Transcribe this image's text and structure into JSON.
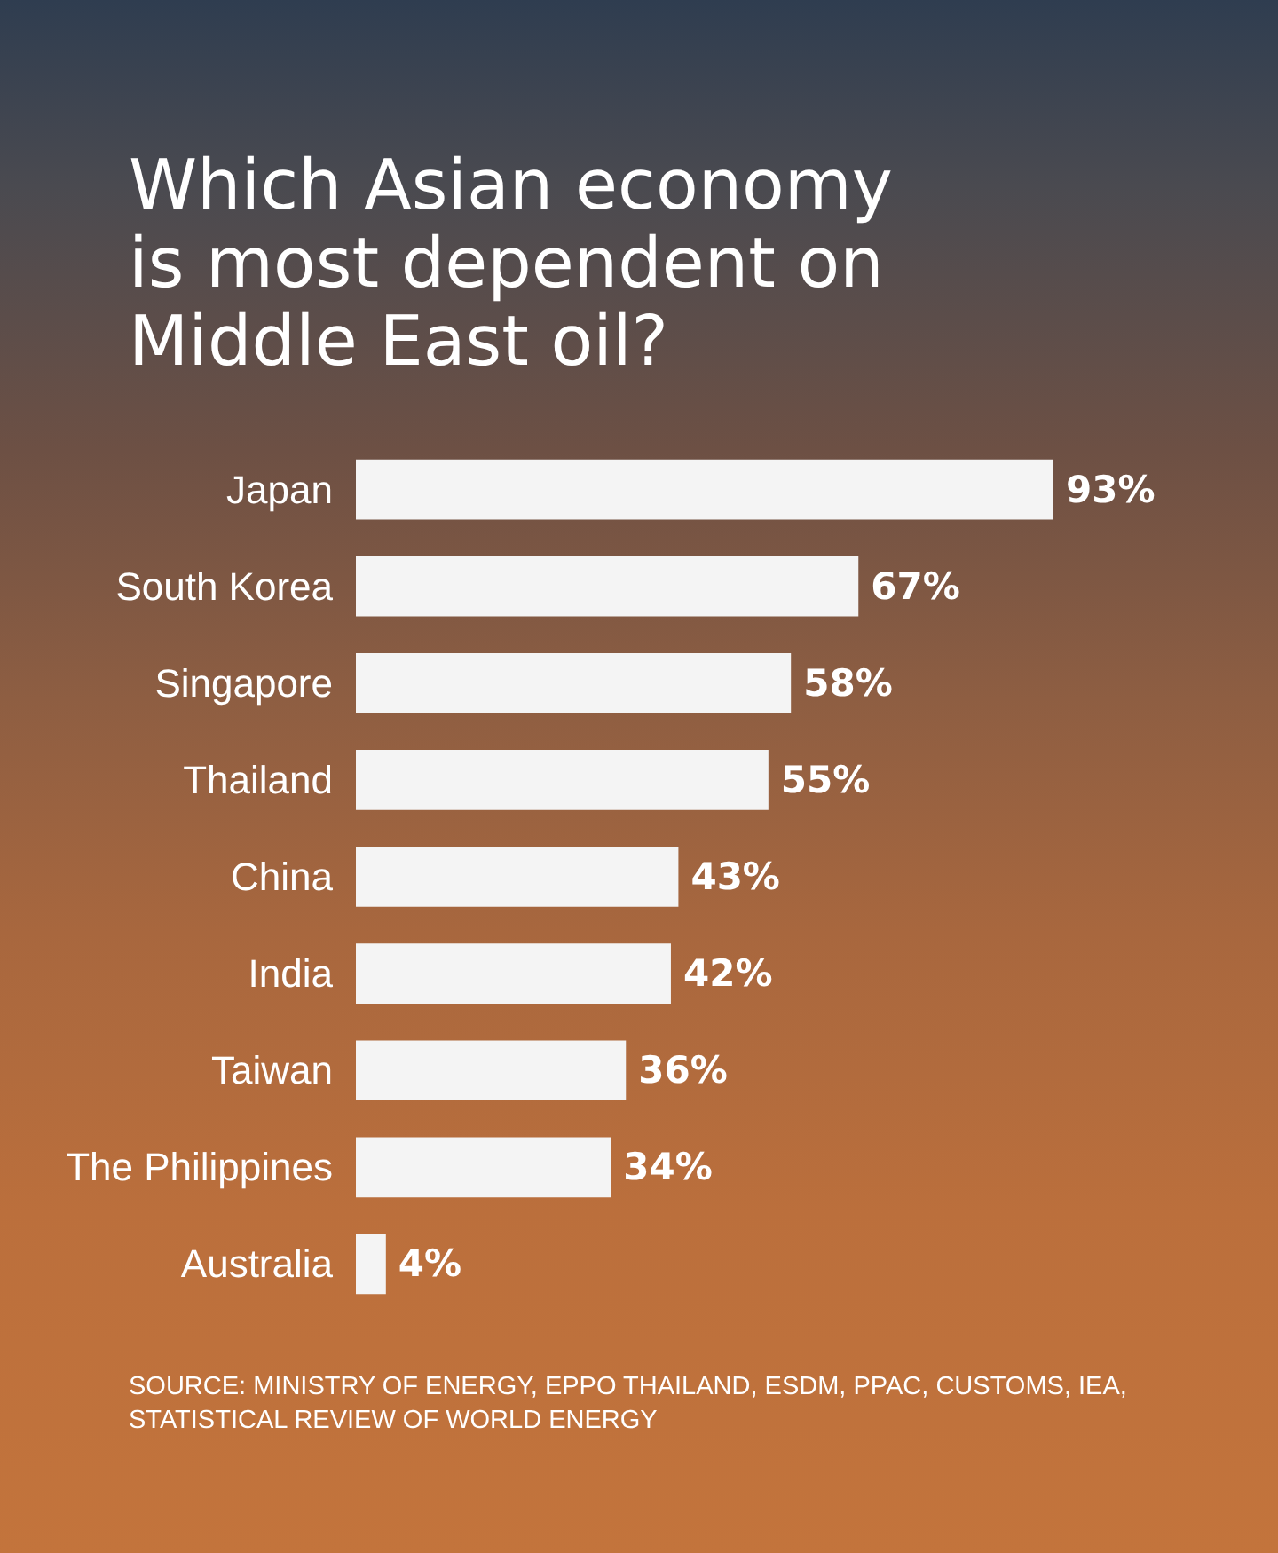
{
  "chart_data": {
    "type": "bar",
    "orientation": "horizontal",
    "title": "Which Asian economy is most dependent on Middle East oil?",
    "categories": [
      "Japan",
      "South Korea",
      "Singapore",
      "Thailand",
      "China",
      "India",
      "Taiwan",
      "The Philippines",
      "Australia"
    ],
    "values": [
      93,
      67,
      58,
      55,
      43,
      42,
      36,
      34,
      4
    ],
    "value_labels": [
      "93%",
      "67%",
      "58%",
      "55%",
      "43%",
      "42%",
      "36%",
      "34%",
      "4%"
    ],
    "color": "#f4f4f4",
    "annotations": [
      "SOURCE: MINISTRY OF ENERGY, EPPO THAILAND, ESDM, PPAC, CUSTOMS, IEA, STATISTICAL REVIEW OF WORLD ENERGY"
    ]
  }
}
